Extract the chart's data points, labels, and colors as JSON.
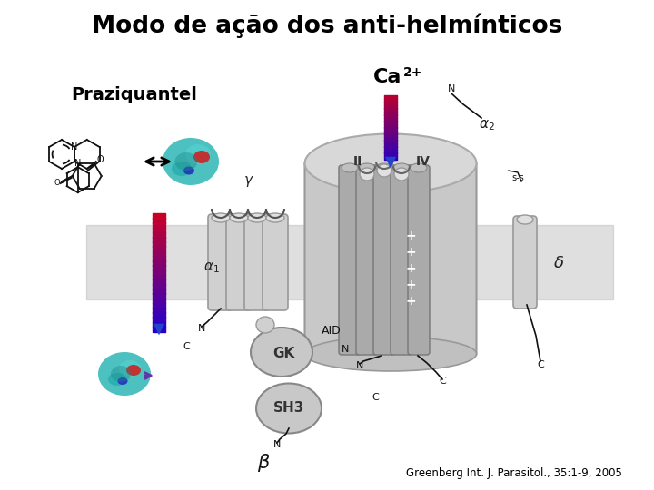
{
  "title": "Modo de ação dos anti-helmínticos",
  "label_praziquantel": "Praziquantel",
  "label_ca": "Ca",
  "label_ca_sup": "2+",
  "label_citation": "Greenberg Int. J. Parasitol., 35:1-9, 2005",
  "label_gamma": "γ",
  "label_alpha_minus": "α₂",
  "label_delta": "δ",
  "label_beta": "β",
  "label_II": "II",
  "label_IV": "IV",
  "label_GK": "GK",
  "label_SH3": "SH3",
  "label_AID": "AID",
  "bg_color": "#ffffff",
  "title_color": "#000000",
  "membrane_color": "#b8b8b8",
  "channel_color_light": "#d4d4d4",
  "channel_color_mid": "#b0b0b0",
  "helix_color": "#aaaaaa",
  "alpha_helix_color": "#cccccc",
  "domain_color": "#c0c0c0",
  "arrow_blue": "#2244cc",
  "arrow_red": "#cc2222",
  "arrow_purple": "#6633bb",
  "plus_color": "#ffffff",
  "text_color": "#000000",
  "dark_gray": "#888888"
}
